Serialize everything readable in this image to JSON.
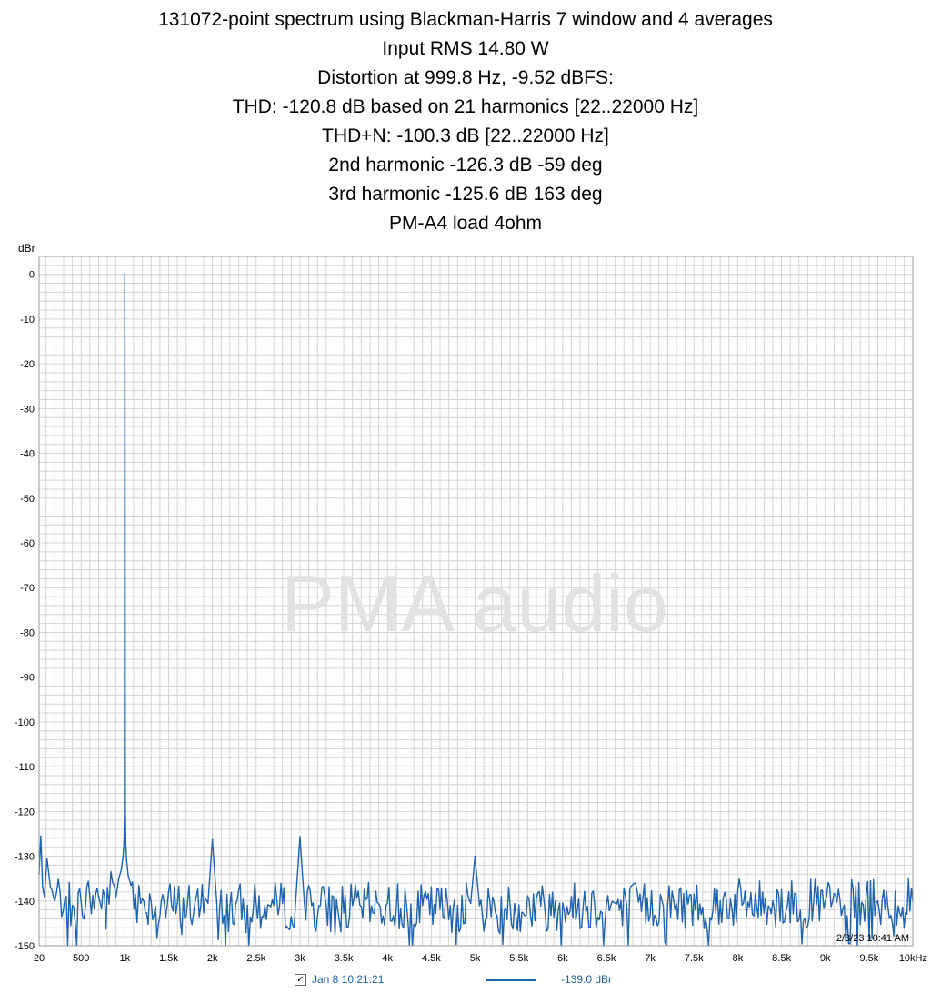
{
  "title_lines": [
    "131072-point spectrum using Blackman-Harris 7 window and 4 averages",
    "Input RMS 14.80 W",
    "Distortion at 999.8 Hz, -9.52 dBFS:",
    "THD: -120.8 dB based on 21 harmonics [22..22000 Hz]",
    "THD+N: -100.3 dB [22..22000 Hz]",
    "2nd harmonic -126.3 dB -59 deg",
    "3rd harmonic -125.6 dB 163 deg",
    "PM-A4 load 4ohm"
  ],
  "watermark": "PMA audio",
  "timestamp": "2/3/23 10:41 AM",
  "legend": {
    "checked": true,
    "series_name": "Jan 8 10:21:21",
    "readout": "-139.0 dBr"
  },
  "colors": {
    "trace": "#1f63ad",
    "grid": "#d4d4d4",
    "watermark": "#e2e2e2",
    "legend_text": "#1f5fa9"
  },
  "chart_data": {
    "type": "line",
    "ylabel": "dBr",
    "xlabel": "",
    "xlim": [
      20,
      10000
    ],
    "ylim": [
      -150,
      4
    ],
    "grid": true,
    "x_ticks": [
      {
        "value": 20,
        "label": "20"
      },
      {
        "value": 500,
        "label": "500"
      },
      {
        "value": 1000,
        "label": "1k"
      },
      {
        "value": 1500,
        "label": "1.5k"
      },
      {
        "value": 2000,
        "label": "2k"
      },
      {
        "value": 2500,
        "label": "2.5k"
      },
      {
        "value": 3000,
        "label": "3k"
      },
      {
        "value": 3500,
        "label": "3.5k"
      },
      {
        "value": 4000,
        "label": "4k"
      },
      {
        "value": 4500,
        "label": "4.5k"
      },
      {
        "value": 5000,
        "label": "5k"
      },
      {
        "value": 5500,
        "label": "5.5k"
      },
      {
        "value": 6000,
        "label": "6k"
      },
      {
        "value": 6500,
        "label": "6.5k"
      },
      {
        "value": 7000,
        "label": "7k"
      },
      {
        "value": 7500,
        "label": "7.5k"
      },
      {
        "value": 8000,
        "label": "8k"
      },
      {
        "value": 8500,
        "label": "8.5k"
      },
      {
        "value": 9000,
        "label": "9k"
      },
      {
        "value": 9500,
        "label": "9.5k"
      },
      {
        "value": 10000,
        "label": "10kHz"
      }
    ],
    "y_ticks": [
      0,
      -10,
      -20,
      -30,
      -40,
      -50,
      -60,
      -70,
      -80,
      -90,
      -100,
      -110,
      -120,
      -130,
      -140,
      -150
    ],
    "series": [
      {
        "name": "Jan 8 10:21:21",
        "x": [
          20,
          40,
          60,
          80,
          110,
          150,
          200,
          260,
          330,
          400,
          500,
          600,
          700,
          800,
          880,
          930,
          960,
          980,
          990,
          995,
          999.8,
          1005,
          1010,
          1020,
          1040,
          1070,
          1120,
          1200,
          1300,
          1450,
          1600,
          1800,
          1950,
          1999.6,
          2050,
          2200,
          2400,
          2600,
          2800,
          2950,
          2999.4,
          3050,
          3300,
          3600,
          4000,
          4400,
          4800,
          4950,
          4999,
          5050,
          5400,
          6000,
          6600,
          7200,
          7800,
          8400,
          9000,
          9600,
          10000
        ],
        "y": [
          -134,
          -125.5,
          -137,
          -139,
          -130.5,
          -137,
          -140,
          -138,
          -139,
          -141,
          -140,
          -139,
          -139,
          -137,
          -136.5,
          -135,
          -133,
          -130,
          -127,
          -120,
          0,
          -118,
          -127,
          -131,
          -134.5,
          -136.5,
          -138.5,
          -139.5,
          -140,
          -140.5,
          -140.5,
          -140.5,
          -140.5,
          -126.3,
          -140.5,
          -141,
          -141,
          -141,
          -140.5,
          -140.5,
          -125.6,
          -140.5,
          -141,
          -141,
          -140.5,
          -141,
          -141,
          -140.5,
          -130,
          -141,
          -141,
          -140.5,
          -140.5,
          -140.5,
          -140,
          -140,
          -140,
          -140,
          -140
        ]
      }
    ]
  }
}
